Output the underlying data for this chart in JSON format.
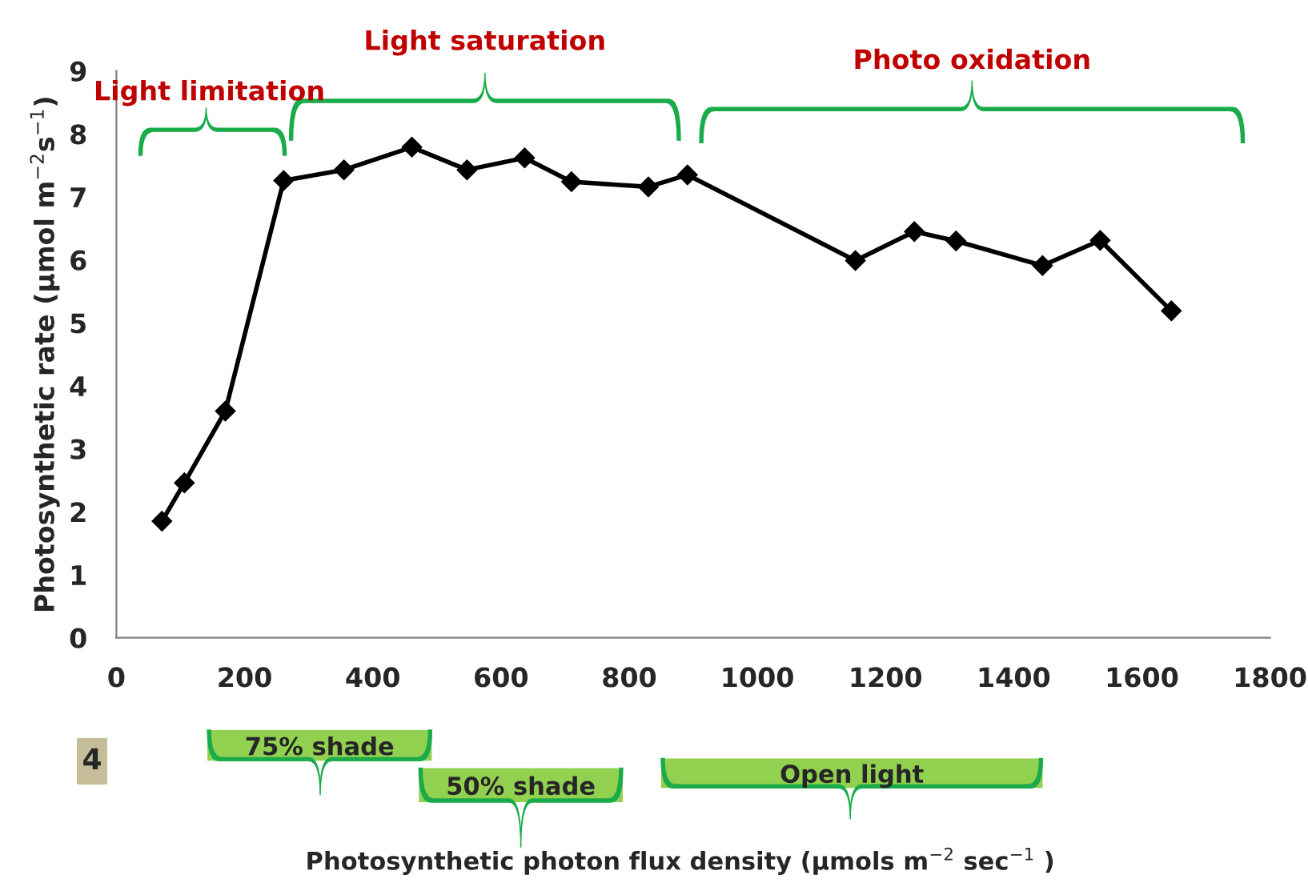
{
  "chart_data": {
    "type": "line",
    "ylabel": "Photosynthetic rate (µmol m$^{−2}$s$^{−1}$)",
    "x": [
      71,
      106,
      170,
      261,
      355,
      461,
      547,
      637,
      710,
      830,
      891,
      1153,
      1245,
      1310,
      1445,
      1535,
      1646
    ],
    "series": [
      {
        "color": "#000000",
        "values": [
          1.85,
          2.46,
          3.6,
          7.26,
          7.43,
          7.79,
          7.43,
          7.62,
          7.24,
          7.16,
          7.35,
          5.99,
          6.45,
          6.3,
          5.91,
          6.31,
          5.19
        ]
      }
    ],
    "xlim": [
      0,
      1800
    ],
    "xticks": [
      0,
      200,
      400,
      600,
      800,
      1000,
      1200,
      1400,
      1600,
      1800
    ],
    "ylim": [
      0,
      9
    ],
    "yticks": [
      0,
      1,
      2,
      3,
      4,
      5,
      6,
      7,
      8,
      9
    ],
    "marker": "diamond",
    "line_style": "solid",
    "grid": false,
    "legend": false,
    "annotations": [
      "Light limitation",
      "Light saturation",
      "Photo oxidation",
      "75% shade",
      "50% shade",
      "Open light",
      "4",
      "Photosynthetic photon flux density (µmols m$^{−2}$ sec$^{−1}$ )"
    ]
  }
}
